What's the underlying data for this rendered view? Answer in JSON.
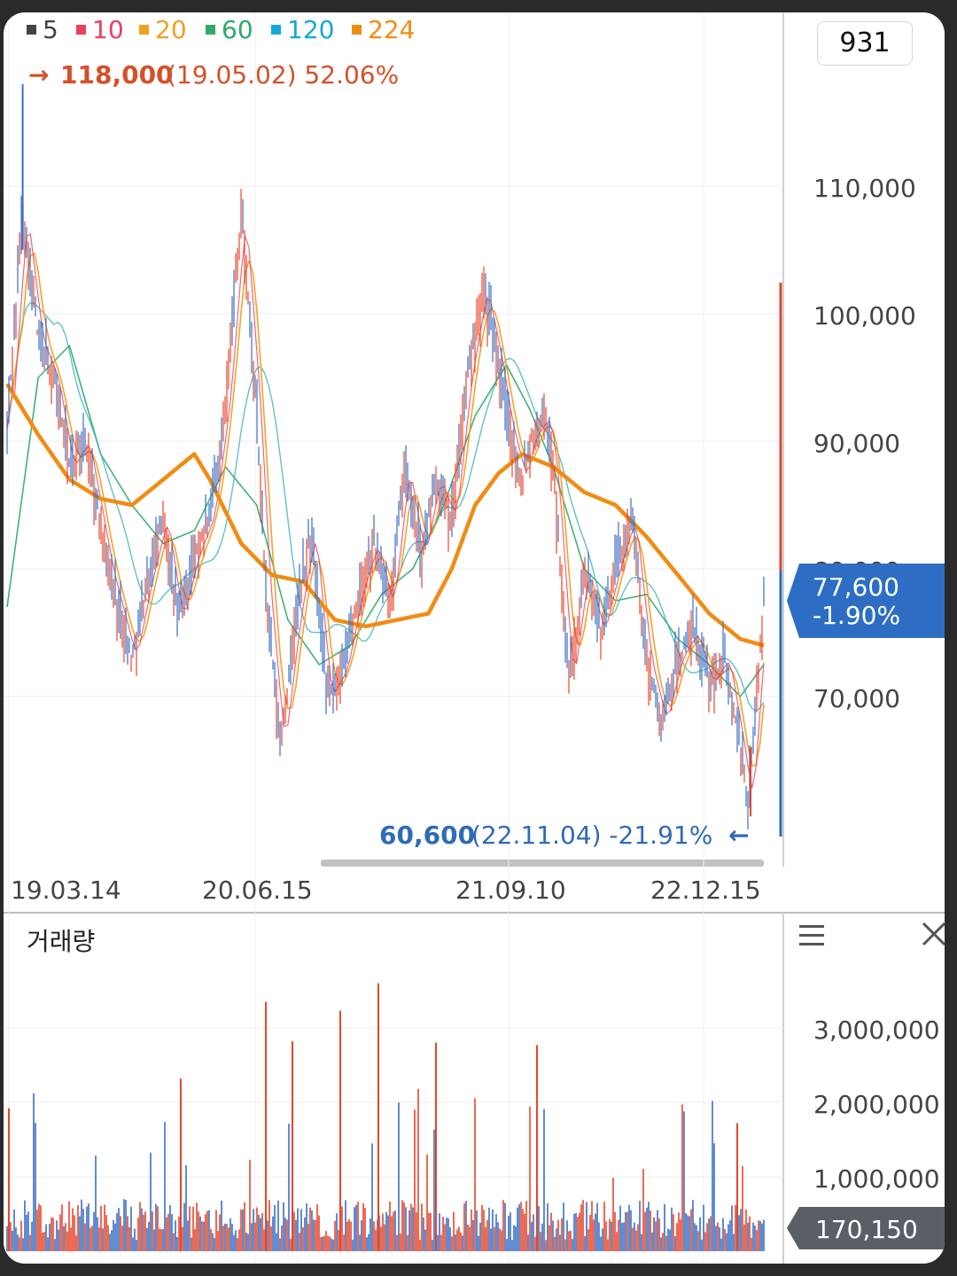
{
  "legend": [
    {
      "label": "5",
      "color": "#444444"
    },
    {
      "label": "10",
      "color": "#e8405f"
    },
    {
      "label": "20",
      "color": "#f0a020"
    },
    {
      "label": "60",
      "color": "#2eaa6a"
    },
    {
      "label": "120",
      "color": "#14a8d8"
    },
    {
      "label": "224",
      "color": "#f08c14"
    }
  ],
  "badge": "931",
  "high_marker": {
    "arrow": "→",
    "price": "118,000",
    "detail": "(19.05.02) 52.06%",
    "color": "#d4502a"
  },
  "low_marker": {
    "price": "60,600",
    "detail": "(22.11.04) -21.91%",
    "arrow": "←",
    "color": "#2e6bb5"
  },
  "current_price": {
    "price": "77,600",
    "change": "-1.90%",
    "color": "#2d6ec4"
  },
  "volume_label": "거래량",
  "volume_current": "170,150",
  "colors": {
    "up": "#e8462a",
    "down": "#3a6fc4",
    "ma224": "#f08c14",
    "ma20": "#f0a020",
    "ma60": "#2eaa6a",
    "ma120": "#3bb0b8"
  },
  "chart_data": [
    {
      "type": "candlestick",
      "title": "",
      "x_ticks": [
        "19.03.14",
        "20.06.15",
        "21.09.10",
        "22.12.15"
      ],
      "y_ticks": [
        70000,
        80000,
        90000,
        100000,
        110000
      ],
      "y_tick_labels": [
        "70,000",
        "80,000",
        "90,000",
        "100,000",
        "110,000"
      ],
      "ylim": [
        56000,
        124000
      ],
      "high": {
        "value": 118000,
        "date": "19.05.02",
        "pct": 52.06
      },
      "low": {
        "value": 60600,
        "date": "22.11.04",
        "pct": -21.91
      },
      "last_close": 77600,
      "close_path": [
        [
          0,
          91000
        ],
        [
          2,
          108000
        ],
        [
          4,
          98000
        ],
        [
          6,
          95000
        ],
        [
          8,
          88000
        ],
        [
          10,
          90000
        ],
        [
          13,
          80000
        ],
        [
          16,
          73000
        ],
        [
          18,
          79000
        ],
        [
          20,
          84000
        ],
        [
          22,
          76000
        ],
        [
          24,
          81000
        ],
        [
          26,
          84000
        ],
        [
          28,
          93000
        ],
        [
          30,
          108000
        ],
        [
          32,
          92000
        ],
        [
          33,
          80000
        ],
        [
          35,
          66000
        ],
        [
          37,
          76000
        ],
        [
          39,
          83000
        ],
        [
          41,
          70000
        ],
        [
          43,
          72000
        ],
        [
          45,
          78000
        ],
        [
          47,
          82000
        ],
        [
          49,
          77000
        ],
        [
          51,
          88000
        ],
        [
          53,
          81000
        ],
        [
          55,
          87000
        ],
        [
          57,
          84000
        ],
        [
          59,
          95000
        ],
        [
          61,
          102000
        ],
        [
          63,
          96000
        ],
        [
          64,
          92000
        ],
        [
          66,
          87000
        ],
        [
          67,
          90000
        ],
        [
          69,
          92000
        ],
        [
          70,
          88000
        ],
        [
          72,
          71000
        ],
        [
          74,
          80000
        ],
        [
          76,
          75000
        ],
        [
          78,
          80000
        ],
        [
          80,
          84000
        ],
        [
          82,
          73000
        ],
        [
          84,
          68000
        ],
        [
          86,
          73000
        ],
        [
          88,
          75000
        ],
        [
          90,
          71000
        ],
        [
          92,
          73000
        ],
        [
          94,
          66000
        ],
        [
          95,
          61500
        ],
        [
          96,
          70000
        ],
        [
          97,
          77600
        ]
      ],
      "ma224": [
        [
          0,
          94500
        ],
        [
          4,
          90500
        ],
        [
          8,
          87000
        ],
        [
          12,
          85500
        ],
        [
          16,
          85000
        ],
        [
          20,
          87000
        ],
        [
          24,
          89000
        ],
        [
          26,
          87000
        ],
        [
          30,
          82000
        ],
        [
          34,
          79500
        ],
        [
          38,
          79000
        ],
        [
          42,
          76000
        ],
        [
          46,
          75500
        ],
        [
          50,
          76000
        ],
        [
          54,
          76500
        ],
        [
          57,
          80000
        ],
        [
          60,
          85000
        ],
        [
          63,
          87500
        ],
        [
          66,
          89000
        ],
        [
          70,
          88000
        ],
        [
          74,
          86000
        ],
        [
          78,
          85000
        ],
        [
          82,
          82500
        ],
        [
          86,
          79500
        ],
        [
          90,
          76500
        ],
        [
          94,
          74500
        ],
        [
          97,
          74000
        ]
      ],
      "ma60": [
        [
          0,
          77000
        ],
        [
          4,
          95000
        ],
        [
          8,
          97500
        ],
        [
          12,
          89000
        ],
        [
          16,
          85000
        ],
        [
          20,
          82000
        ],
        [
          24,
          83000
        ],
        [
          28,
          88000
        ],
        [
          32,
          85000
        ],
        [
          36,
          76000
        ],
        [
          40,
          72500
        ],
        [
          44,
          74000
        ],
        [
          48,
          78000
        ],
        [
          52,
          80000
        ],
        [
          56,
          85000
        ],
        [
          60,
          92000
        ],
        [
          64,
          96000
        ],
        [
          67,
          92500
        ],
        [
          70,
          88000
        ],
        [
          74,
          80000
        ],
        [
          78,
          77500
        ],
        [
          82,
          78000
        ],
        [
          86,
          74500
        ],
        [
          90,
          72500
        ],
        [
          94,
          70000
        ],
        [
          97,
          72500
        ]
      ]
    },
    {
      "type": "bar",
      "title": "거래량",
      "y_ticks": [
        1000000,
        2000000,
        3000000
      ],
      "y_tick_labels": [
        "1,000,000",
        "2,000,000",
        "3,000,000"
      ],
      "ylim": [
        0,
        3600000
      ],
      "last_value": 170150
    }
  ]
}
